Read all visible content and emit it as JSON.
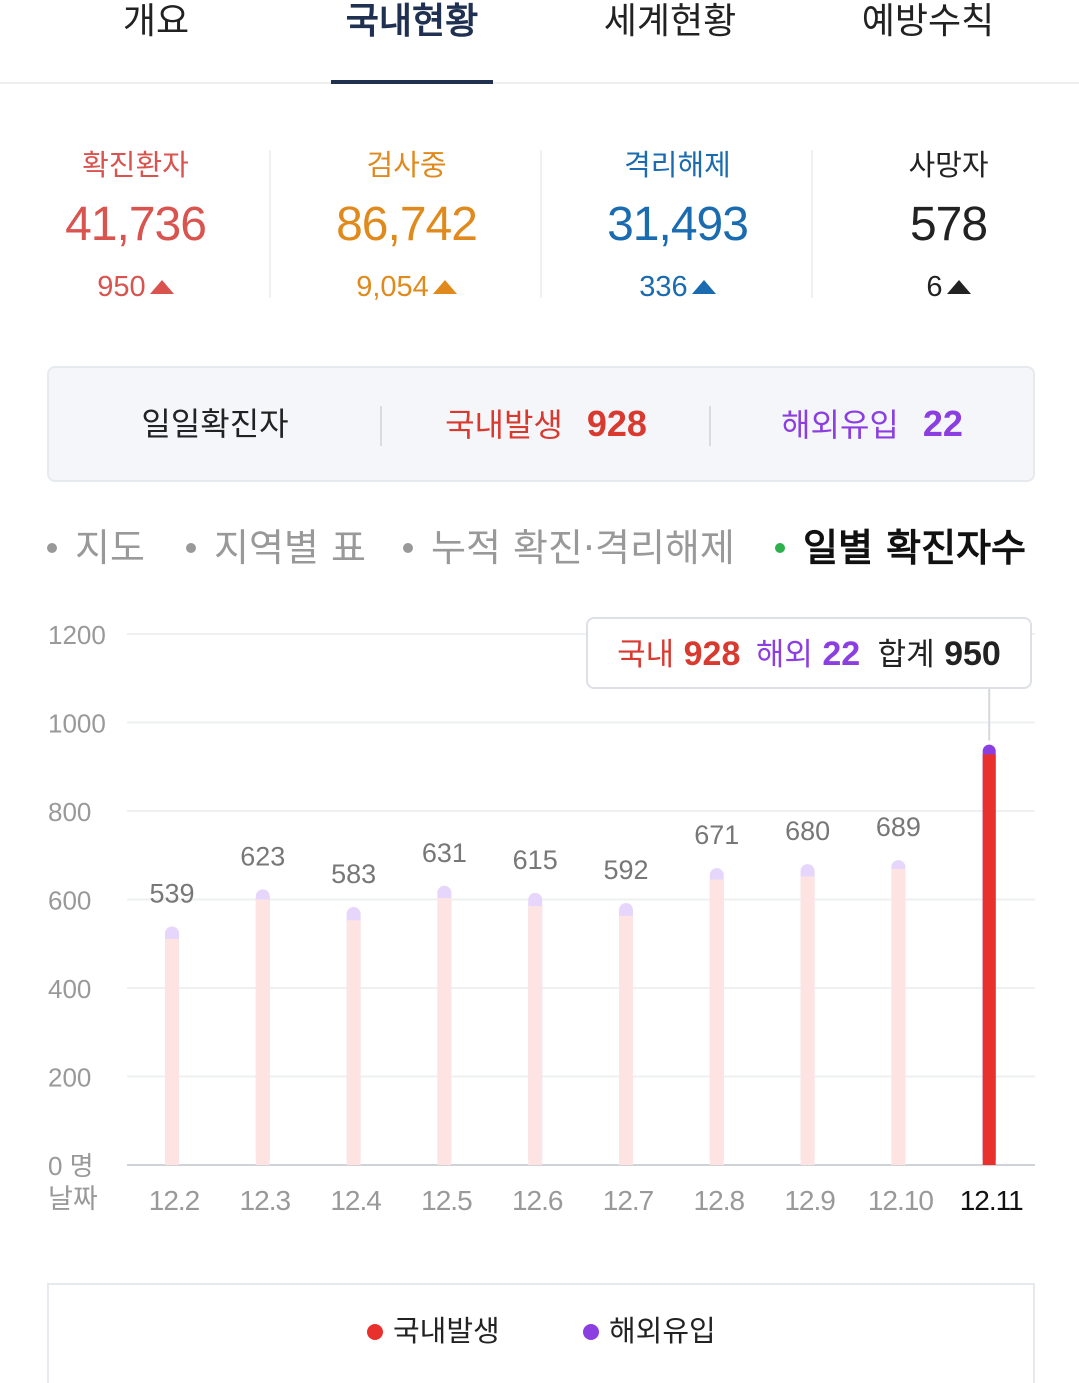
{
  "tabs": [
    {
      "label": "개요",
      "active": false
    },
    {
      "label": "국내현황",
      "active": true
    },
    {
      "label": "세계현황",
      "active": false
    },
    {
      "label": "예방수칙",
      "active": false
    }
  ],
  "stats": [
    {
      "label": "확진환자",
      "value": "41,736",
      "change": "950",
      "color": "#d9534f"
    },
    {
      "label": "검사중",
      "value": "86,742",
      "change": "9,054",
      "color": "#e08a1e"
    },
    {
      "label": "격리해제",
      "value": "31,493",
      "change": "336",
      "color": "#1a6bb0"
    },
    {
      "label": "사망자",
      "value": "578",
      "change": "6",
      "color": "#222222"
    }
  ],
  "daily": {
    "label": "일일확진자",
    "domestic_label": "국내발생",
    "domestic_value": "928",
    "overseas_label": "해외유입",
    "overseas_value": "22"
  },
  "subtabs": [
    {
      "label": "지도",
      "active": false
    },
    {
      "label": "지역별 표",
      "active": false
    },
    {
      "label": "누적 확진·격리해제",
      "active": false
    },
    {
      "label": "일별 확진자수",
      "active": true
    }
  ],
  "tooltip": {
    "domestic_label": "국내",
    "domestic_value": "928",
    "overseas_label": "해외",
    "overseas_value": "22",
    "total_label": "합계",
    "total_value": "950"
  },
  "colors": {
    "domestic": "#e8312c",
    "overseas": "#8c3fe0",
    "domestic_faded": "#fde4e2",
    "overseas_faded": "#e7d6fb"
  },
  "chart_data": {
    "type": "bar",
    "stacked": true,
    "categories": [
      "12.2",
      "12.3",
      "12.4",
      "12.5",
      "12.6",
      "12.7",
      "12.8",
      "12.9",
      "12.10",
      "12.11"
    ],
    "totals": [
      539,
      623,
      583,
      631,
      615,
      592,
      671,
      680,
      689,
      950
    ],
    "series": [
      {
        "name": "국내발생",
        "values": [
          511,
          600,
          553,
          603,
          585,
          563,
          645,
          652,
          669,
          928
        ]
      },
      {
        "name": "해외유입",
        "values": [
          28,
          23,
          30,
          28,
          30,
          29,
          26,
          28,
          20,
          22
        ]
      }
    ],
    "highlighted_index": 9,
    "y_ticks": [
      "1200",
      "1000",
      "800",
      "600",
      "400",
      "200",
      "0 명"
    ],
    "ylim": [
      0,
      1200
    ],
    "x_axis_label": "날짜",
    "grid": true,
    "legend": [
      "국내발생",
      "해외유입"
    ],
    "legend_position": "bottom"
  }
}
